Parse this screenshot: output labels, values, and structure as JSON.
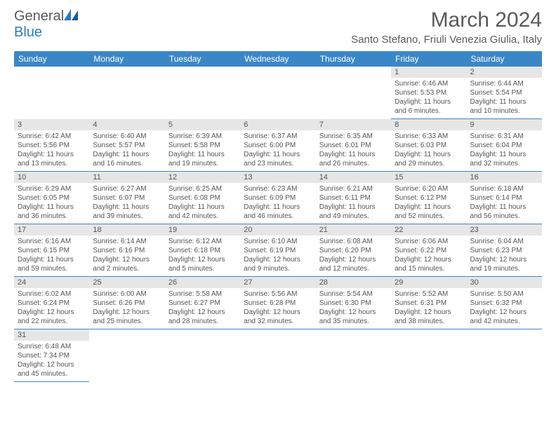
{
  "brand": {
    "text1": "General",
    "text2": "Blue"
  },
  "title": "March 2024",
  "location": "Santo Stefano, Friuli Venezia Giulia, Italy",
  "colors": {
    "header_bg": "#3a87c8",
    "header_text": "#ffffff",
    "daynum_bg": "#e6e6e6",
    "border": "#3a87c8",
    "text": "#555555",
    "logo_gray": "#595959",
    "logo_blue": "#2b7cbf"
  },
  "weekdays": [
    "Sunday",
    "Monday",
    "Tuesday",
    "Wednesday",
    "Thursday",
    "Friday",
    "Saturday"
  ],
  "weeks": [
    [
      null,
      null,
      null,
      null,
      null,
      {
        "n": "1",
        "sr": "Sunrise: 6:46 AM",
        "ss": "Sunset: 5:53 PM",
        "dl": "Daylight: 11 hours and 6 minutes."
      },
      {
        "n": "2",
        "sr": "Sunrise: 6:44 AM",
        "ss": "Sunset: 5:54 PM",
        "dl": "Daylight: 11 hours and 10 minutes."
      }
    ],
    [
      {
        "n": "3",
        "sr": "Sunrise: 6:42 AM",
        "ss": "Sunset: 5:56 PM",
        "dl": "Daylight: 11 hours and 13 minutes."
      },
      {
        "n": "4",
        "sr": "Sunrise: 6:40 AM",
        "ss": "Sunset: 5:57 PM",
        "dl": "Daylight: 11 hours and 16 minutes."
      },
      {
        "n": "5",
        "sr": "Sunrise: 6:39 AM",
        "ss": "Sunset: 5:58 PM",
        "dl": "Daylight: 11 hours and 19 minutes."
      },
      {
        "n": "6",
        "sr": "Sunrise: 6:37 AM",
        "ss": "Sunset: 6:00 PM",
        "dl": "Daylight: 11 hours and 23 minutes."
      },
      {
        "n": "7",
        "sr": "Sunrise: 6:35 AM",
        "ss": "Sunset: 6:01 PM",
        "dl": "Daylight: 11 hours and 26 minutes."
      },
      {
        "n": "8",
        "sr": "Sunrise: 6:33 AM",
        "ss": "Sunset: 6:03 PM",
        "dl": "Daylight: 11 hours and 29 minutes."
      },
      {
        "n": "9",
        "sr": "Sunrise: 6:31 AM",
        "ss": "Sunset: 6:04 PM",
        "dl": "Daylight: 11 hours and 32 minutes."
      }
    ],
    [
      {
        "n": "10",
        "sr": "Sunrise: 6:29 AM",
        "ss": "Sunset: 6:05 PM",
        "dl": "Daylight: 11 hours and 36 minutes."
      },
      {
        "n": "11",
        "sr": "Sunrise: 6:27 AM",
        "ss": "Sunset: 6:07 PM",
        "dl": "Daylight: 11 hours and 39 minutes."
      },
      {
        "n": "12",
        "sr": "Sunrise: 6:25 AM",
        "ss": "Sunset: 6:08 PM",
        "dl": "Daylight: 11 hours and 42 minutes."
      },
      {
        "n": "13",
        "sr": "Sunrise: 6:23 AM",
        "ss": "Sunset: 6:09 PM",
        "dl": "Daylight: 11 hours and 46 minutes."
      },
      {
        "n": "14",
        "sr": "Sunrise: 6:21 AM",
        "ss": "Sunset: 6:11 PM",
        "dl": "Daylight: 11 hours and 49 minutes."
      },
      {
        "n": "15",
        "sr": "Sunrise: 6:20 AM",
        "ss": "Sunset: 6:12 PM",
        "dl": "Daylight: 11 hours and 52 minutes."
      },
      {
        "n": "16",
        "sr": "Sunrise: 6:18 AM",
        "ss": "Sunset: 6:14 PM",
        "dl": "Daylight: 11 hours and 56 minutes."
      }
    ],
    [
      {
        "n": "17",
        "sr": "Sunrise: 6:16 AM",
        "ss": "Sunset: 6:15 PM",
        "dl": "Daylight: 11 hours and 59 minutes."
      },
      {
        "n": "18",
        "sr": "Sunrise: 6:14 AM",
        "ss": "Sunset: 6:16 PM",
        "dl": "Daylight: 12 hours and 2 minutes."
      },
      {
        "n": "19",
        "sr": "Sunrise: 6:12 AM",
        "ss": "Sunset: 6:18 PM",
        "dl": "Daylight: 12 hours and 5 minutes."
      },
      {
        "n": "20",
        "sr": "Sunrise: 6:10 AM",
        "ss": "Sunset: 6:19 PM",
        "dl": "Daylight: 12 hours and 9 minutes."
      },
      {
        "n": "21",
        "sr": "Sunrise: 6:08 AM",
        "ss": "Sunset: 6:20 PM",
        "dl": "Daylight: 12 hours and 12 minutes."
      },
      {
        "n": "22",
        "sr": "Sunrise: 6:06 AM",
        "ss": "Sunset: 6:22 PM",
        "dl": "Daylight: 12 hours and 15 minutes."
      },
      {
        "n": "23",
        "sr": "Sunrise: 6:04 AM",
        "ss": "Sunset: 6:23 PM",
        "dl": "Daylight: 12 hours and 19 minutes."
      }
    ],
    [
      {
        "n": "24",
        "sr": "Sunrise: 6:02 AM",
        "ss": "Sunset: 6:24 PM",
        "dl": "Daylight: 12 hours and 22 minutes."
      },
      {
        "n": "25",
        "sr": "Sunrise: 6:00 AM",
        "ss": "Sunset: 6:26 PM",
        "dl": "Daylight: 12 hours and 25 minutes."
      },
      {
        "n": "26",
        "sr": "Sunrise: 5:58 AM",
        "ss": "Sunset: 6:27 PM",
        "dl": "Daylight: 12 hours and 28 minutes."
      },
      {
        "n": "27",
        "sr": "Sunrise: 5:56 AM",
        "ss": "Sunset: 6:28 PM",
        "dl": "Daylight: 12 hours and 32 minutes."
      },
      {
        "n": "28",
        "sr": "Sunrise: 5:54 AM",
        "ss": "Sunset: 6:30 PM",
        "dl": "Daylight: 12 hours and 35 minutes."
      },
      {
        "n": "29",
        "sr": "Sunrise: 5:52 AM",
        "ss": "Sunset: 6:31 PM",
        "dl": "Daylight: 12 hours and 38 minutes."
      },
      {
        "n": "30",
        "sr": "Sunrise: 5:50 AM",
        "ss": "Sunset: 6:32 PM",
        "dl": "Daylight: 12 hours and 42 minutes."
      }
    ],
    [
      {
        "n": "31",
        "sr": "Sunrise: 6:48 AM",
        "ss": "Sunset: 7:34 PM",
        "dl": "Daylight: 12 hours and 45 minutes."
      },
      null,
      null,
      null,
      null,
      null,
      null
    ]
  ]
}
